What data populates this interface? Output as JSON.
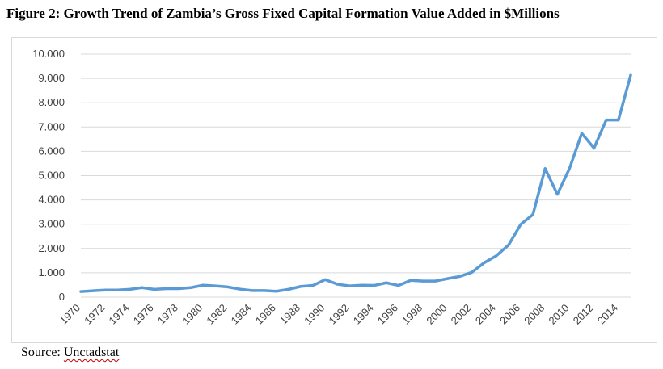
{
  "figure": {
    "title": "Figure 2: Growth Trend of Zambia’s Gross Fixed Capital Formation Value Added in $Millions",
    "source_prefix": "Source: ",
    "source_name": "Unctadstat"
  },
  "chart_data": {
    "type": "line",
    "title": "",
    "xlabel": "",
    "ylabel": "",
    "x": [
      1970,
      1971,
      1972,
      1973,
      1974,
      1975,
      1976,
      1977,
      1978,
      1979,
      1980,
      1981,
      1982,
      1983,
      1984,
      1985,
      1986,
      1987,
      1988,
      1989,
      1990,
      1991,
      1992,
      1993,
      1994,
      1995,
      1996,
      1997,
      1998,
      1999,
      2000,
      2001,
      2002,
      2003,
      2004,
      2005,
      2006,
      2007,
      2008,
      2009,
      2010,
      2011,
      2012,
      2013,
      2014,
      2015
    ],
    "x_tick_labels": [
      "1970",
      "1972",
      "1974",
      "1976",
      "1978",
      "1980",
      "1982",
      "1984",
      "1986",
      "1988",
      "1990",
      "1992",
      "1994",
      "1996",
      "1998",
      "2000",
      "2002",
      "2004",
      "2006",
      "2008",
      "2010",
      "2012",
      "2014"
    ],
    "ylim": [
      0,
      10000
    ],
    "y_tick_labels": [
      "0",
      "1.000",
      "2.000",
      "3.000",
      "4.000",
      "5.000",
      "6.000",
      "7.000",
      "8.000",
      "9.000",
      "10.000"
    ],
    "grid": true,
    "color": "#5b9bd5",
    "series": [
      {
        "values": [
          230,
          260,
          290,
          290,
          320,
          390,
          320,
          350,
          350,
          390,
          490,
          460,
          420,
          330,
          270,
          270,
          240,
          320,
          440,
          480,
          720,
          530,
          460,
          490,
          480,
          590,
          480,
          690,
          660,
          660,
          760,
          850,
          1020,
          1410,
          1700,
          2140,
          2990,
          3400,
          5290,
          4230,
          5300,
          6740,
          6130,
          7290,
          7290,
          9130
        ]
      }
    ]
  }
}
